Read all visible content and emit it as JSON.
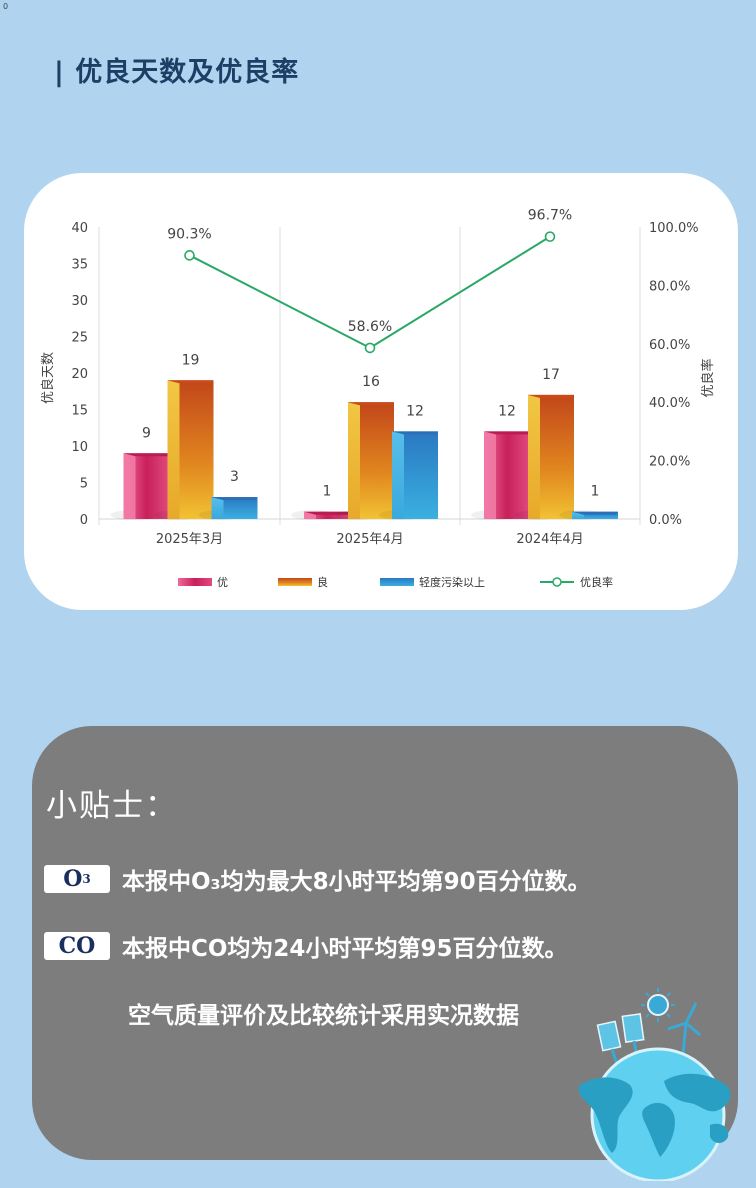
{
  "corner_mark": "0",
  "page_title": "| 优良天数及优良率",
  "chart_data": {
    "type": "bar+line",
    "title": "优良天数及优良率",
    "categories": [
      "2025年3月",
      "2025年4月",
      "2024年4月"
    ],
    "series": [
      {
        "name": "优",
        "type": "bar",
        "axis": "left",
        "color": "#d6336c",
        "values": [
          9,
          1,
          12
        ]
      },
      {
        "name": "良",
        "type": "bar",
        "axis": "left",
        "color": "#e8912a",
        "values": [
          19,
          16,
          17
        ]
      },
      {
        "name": "轻度污染以上",
        "type": "bar",
        "axis": "left",
        "color": "#2f8fd0",
        "values": [
          3,
          12,
          1
        ]
      },
      {
        "name": "优良率",
        "type": "line",
        "axis": "right",
        "color": "#2aa866",
        "values": [
          90.3,
          58.6,
          96.7
        ],
        "labels": [
          "90.3%",
          "58.6%",
          "96.7%"
        ]
      }
    ],
    "ylabel": "优良天数",
    "ylabel_right": "优良率",
    "ylim": [
      0,
      40
    ],
    "yticks": [
      "0",
      "5",
      "10",
      "15",
      "20",
      "25",
      "30",
      "35",
      "40"
    ],
    "ylim_right": [
      0,
      100
    ],
    "yticks_right": [
      "0.0%",
      "20.0%",
      "40.0%",
      "60.0%",
      "80.0%",
      "100.0%"
    ],
    "legend": [
      "优",
      "良",
      "轻度污染以上",
      "优良率"
    ],
    "legend_position": "bottom",
    "grid": "vertical category separators"
  },
  "tips": {
    "title": "小贴士：",
    "items": [
      {
        "badge": "O",
        "badge_sub": "3",
        "text": "本报中O₃均为最大8小时平均第90百分位数。"
      },
      {
        "badge": "CO",
        "badge_sub": "",
        "text": "本报中CO均为24小时平均第95百分位数。"
      }
    ],
    "note": "空气质量评价及比较统计采用实况数据"
  },
  "decoration": {
    "icon": "earth-globe-renewable-energy-icon"
  }
}
